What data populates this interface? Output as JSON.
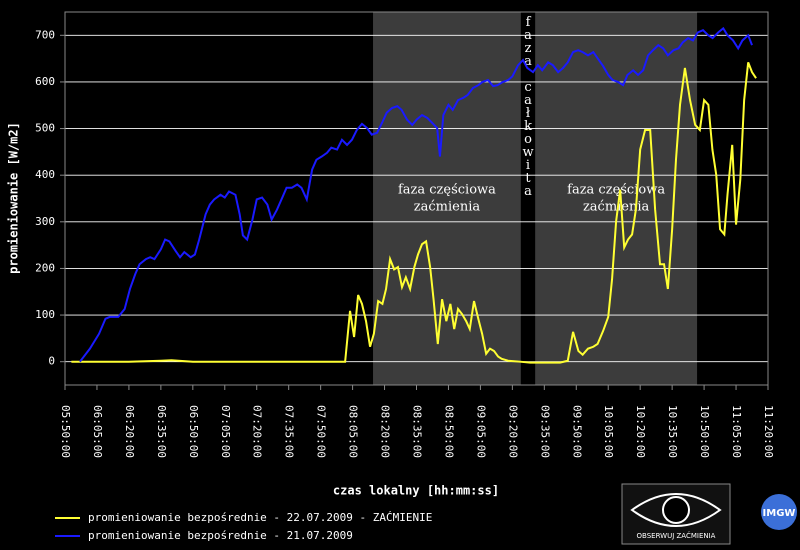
{
  "chart_data": {
    "type": "line",
    "ylabel": "promieniowanie [W/m2]",
    "xlabel": "czas lokalny [hh:mm:ss]",
    "xlim": [
      350,
      680
    ],
    "ylim": [
      -50,
      750
    ],
    "yticks": [
      0,
      100,
      200,
      300,
      400,
      500,
      600,
      700
    ],
    "xticks": [
      {
        "value": 350,
        "label": "05:50:00"
      },
      {
        "value": 365,
        "label": "06:05:00"
      },
      {
        "value": 380,
        "label": "06:20:00"
      },
      {
        "value": 395,
        "label": "06:35:00"
      },
      {
        "value": 410,
        "label": "06:50:00"
      },
      {
        "value": 425,
        "label": "07:05:00"
      },
      {
        "value": 440,
        "label": "07:20:00"
      },
      {
        "value": 455,
        "label": "07:35:00"
      },
      {
        "value": 470,
        "label": "07:50:00"
      },
      {
        "value": 485,
        "label": "08:05:00"
      },
      {
        "value": 500,
        "label": "08:20:00"
      },
      {
        "value": 515,
        "label": "08:35:00"
      },
      {
        "value": 530,
        "label": "08:50:00"
      },
      {
        "value": 545,
        "label": "09:05:00"
      },
      {
        "value": 560,
        "label": "09:20:00"
      },
      {
        "value": 575,
        "label": "09:35:00"
      },
      {
        "value": 590,
        "label": "09:50:00"
      },
      {
        "value": 605,
        "label": "10:05:00"
      },
      {
        "value": 620,
        "label": "10:20:00"
      },
      {
        "value": 635,
        "label": "10:35:00"
      },
      {
        "value": 650,
        "label": "10:50:00"
      },
      {
        "value": 665,
        "label": "11:05:00"
      },
      {
        "value": 680,
        "label": "11:20:00"
      }
    ],
    "grid": true,
    "phases": [
      {
        "start": 494.6,
        "end": 564,
        "label": [
          "faza częściowa",
          "zaćmienia"
        ],
        "color": "#3c3c3c"
      },
      {
        "start": 564,
        "end": 570.7,
        "label": "faza całkowita",
        "color": "#000000"
      },
      {
        "start": 570.7,
        "end": 646.7,
        "label": [
          "faza częściowa",
          "zaćmienia"
        ],
        "color": "#3c3c3c"
      }
    ],
    "series": [
      {
        "name": "promieniowanie bezpośrednie - 22.07.2009 - ZAĆMIENIE",
        "color": "#ffff33",
        "x": [
          353,
          360,
          380,
          395,
          400,
          410,
          450,
          481.5,
          483.8,
          485.7,
          487.6,
          489.4,
          491.3,
          493.2,
          495,
          497,
          499,
          500.7,
          502.6,
          504.5,
          506.3,
          508.2,
          510,
          512,
          514,
          515.7,
          517.6,
          519.5,
          521.4,
          523,
          525,
          527,
          529,
          530.9,
          532.7,
          534.5,
          536.4,
          538.3,
          540,
          542,
          544,
          545.8,
          547.7,
          549.5,
          551.4,
          553.3,
          555,
          558,
          563.6,
          568.3,
          582.4,
          586,
          588.5,
          591,
          593,
          595.5,
          598,
          600,
          602.6,
          605,
          606.8,
          608.7,
          610.6,
          612.5,
          614.3,
          616.2,
          618,
          620,
          622.3,
          624.7,
          627,
          629.3,
          631.2,
          633,
          635,
          636.8,
          638.7,
          641,
          643.4,
          645.8,
          648,
          650,
          652,
          653.9,
          655.7,
          657.5,
          659.5,
          661,
          663.2,
          665,
          667,
          668.8,
          670.7,
          672.5,
          674.4
        ],
        "values": [
          0,
          0,
          0,
          2,
          3,
          0,
          0,
          0,
          109,
          53,
          143,
          124,
          87,
          32,
          60,
          130,
          124,
          156,
          220,
          198,
          203,
          160,
          181,
          156,
          203,
          230,
          252,
          258,
          203,
          134,
          38,
          134,
          87,
          124,
          70,
          113,
          102,
          87,
          70,
          130,
          92,
          60,
          17,
          28,
          23,
          11,
          6,
          2,
          0,
          -2,
          -2,
          2,
          64,
          23,
          15,
          28,
          32,
          38,
          66,
          96,
          177,
          301,
          369,
          245,
          262,
          273,
          327,
          455,
          497,
          497,
          327,
          209,
          209,
          156,
          284,
          433,
          551,
          630,
          561,
          508,
          497,
          561,
          551,
          455,
          401,
          284,
          273,
          359,
          465,
          294,
          391,
          561,
          642,
          621,
          608
        ]
      },
      {
        "name": "promieniowanie bezpośrednie - 21.07.2009",
        "color": "#1a1aff",
        "x": [
          357,
          361.7,
          366,
          369,
          371,
          375,
          378,
          380.5,
          383,
          385,
          388,
          390,
          392,
          395,
          397,
          399,
          402,
          404,
          406,
          409,
          411,
          413,
          416,
          418,
          420,
          423,
          425,
          427,
          430,
          432,
          433.5,
          435.5,
          438,
          440,
          442.5,
          445,
          447,
          449.5,
          452,
          454,
          456.5,
          459,
          461,
          463.5,
          466,
          468,
          470.5,
          473,
          475,
          477.7,
          480,
          482.4,
          484.7,
          487,
          489.4,
          491.8,
          494,
          496.5,
          499,
          501,
          503.5,
          506,
          508,
          510.6,
          513,
          515,
          517.6,
          520,
          522,
          524.7,
          526,
          527.6,
          530,
          532,
          534.5,
          537,
          539,
          541.5,
          544,
          546,
          548.6,
          551,
          553,
          555.6,
          558,
          560,
          562.7,
          565,
          567,
          569.7,
          572,
          574,
          576.8,
          579,
          581.5,
          583.8,
          586,
          588.5,
          590.9,
          593,
          595.5,
          598,
          600,
          602.6,
          605,
          607,
          609.6,
          612,
          614,
          616.7,
          619,
          621.4,
          623.7,
          626,
          628.5,
          630.8,
          633,
          635.6,
          638,
          640,
          642.5,
          644.8,
          647,
          649.5,
          652,
          654,
          656.6,
          659,
          661,
          663.6,
          666,
          668,
          670.7,
          672.5
        ],
        "values": [
          0,
          28,
          60,
          92,
          96,
          96,
          113,
          156,
          188,
          209,
          220,
          224,
          220,
          241,
          262,
          258,
          237,
          224,
          235,
          224,
          230,
          262,
          316,
          337,
          348,
          358,
          352,
          365,
          358,
          316,
          271,
          262,
          305,
          348,
          352,
          337,
          305,
          326,
          352,
          373,
          373,
          380,
          373,
          348,
          412,
          433,
          440,
          448,
          459,
          455,
          476,
          465,
          476,
          497,
          510,
          501,
          487,
          491,
          514,
          534,
          544,
          548,
          540,
          519,
          508,
          519,
          529,
          523,
          514,
          501,
          440,
          529,
          551,
          540,
          561,
          566,
          572,
          587,
          593,
          600,
          604,
          591,
          593,
          600,
          604,
          612,
          636,
          647,
          630,
          621,
          636,
          625,
          642,
          636,
          621,
          630,
          642,
          664,
          668,
          664,
          657,
          664,
          651,
          634,
          615,
          604,
          600,
          593,
          615,
          625,
          615,
          625,
          657,
          668,
          679,
          672,
          657,
          668,
          672,
          685,
          694,
          689,
          706,
          711,
          700,
          694,
          706,
          715,
          700,
          689,
          672,
          689,
          700,
          679
        ]
      }
    ],
    "logos": [
      "OBSERWUJ ZAĆMIENIA",
      "IMGW"
    ]
  }
}
